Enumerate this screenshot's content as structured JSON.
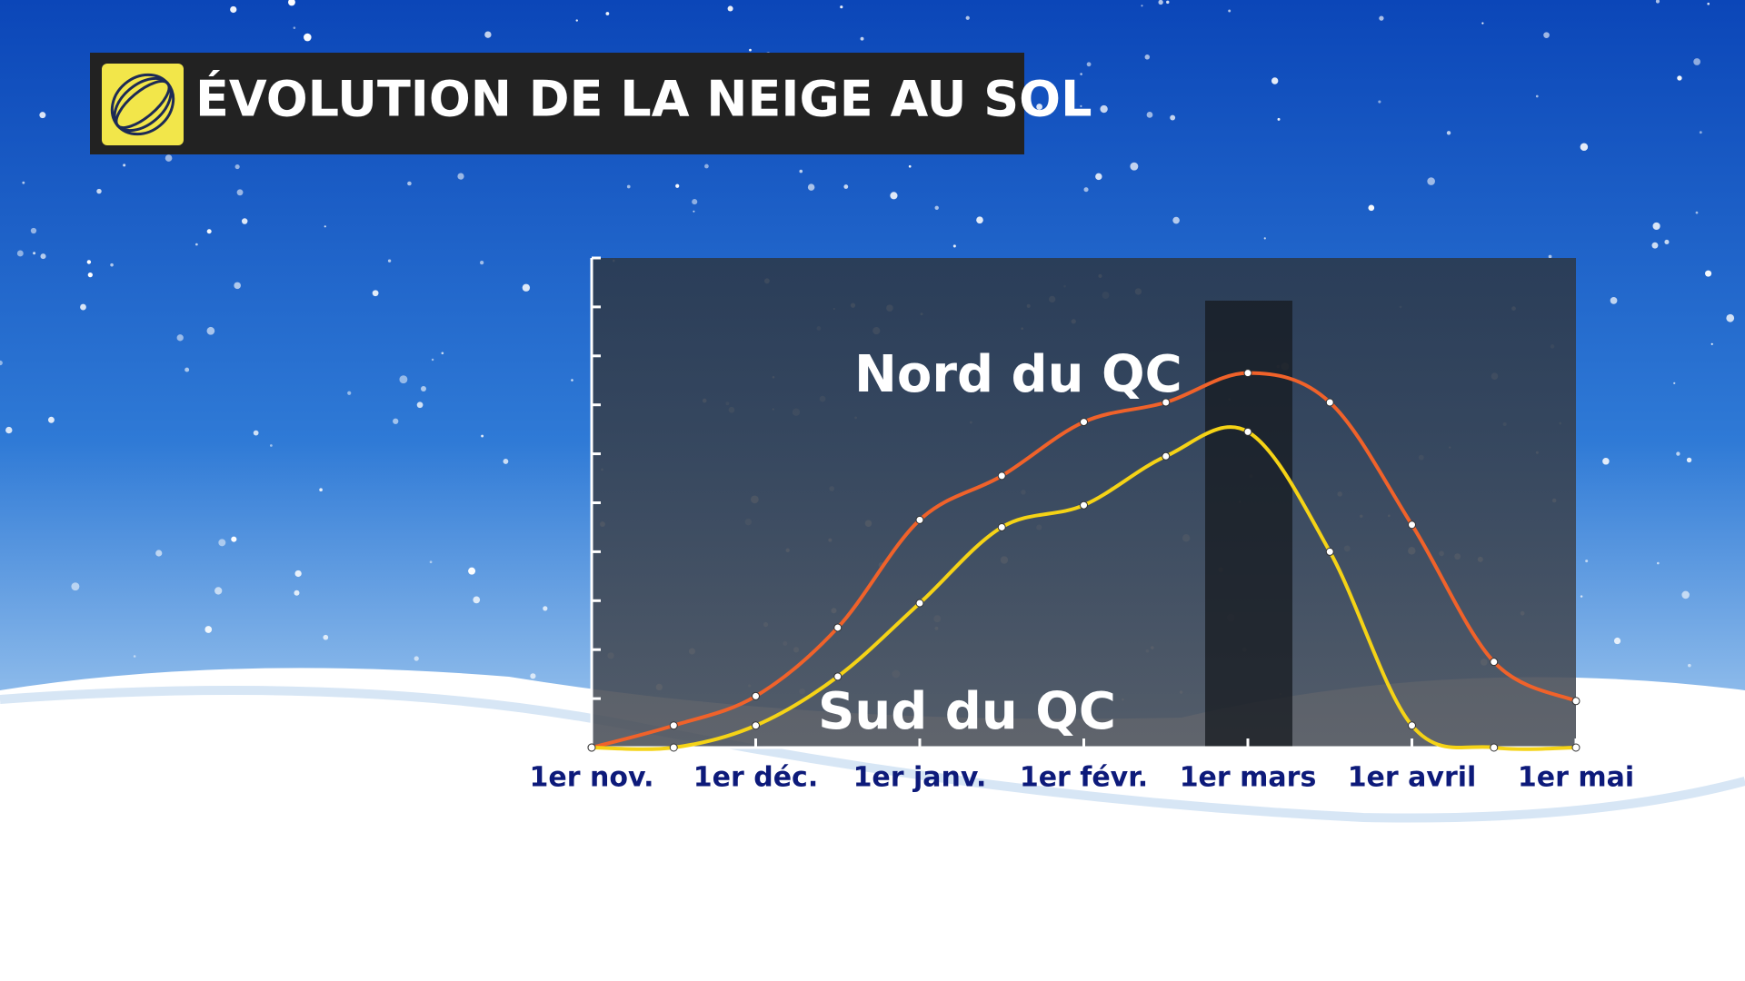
{
  "chart_data": {
    "type": "line",
    "title": "ÉVOLUTION DE LA NEIGE AU SOL",
    "categories": [
      "1er nov.",
      null,
      "1er déc.",
      null,
      "1er janv.",
      null,
      "1er févr.",
      null,
      "1er mars",
      null,
      "1er avril",
      null,
      "1er mai"
    ],
    "series": [
      {
        "name": "Nord du QC",
        "color": "#f0622a",
        "values": [
          0,
          0.45,
          1.05,
          2.45,
          4.65,
          5.55,
          6.65,
          7.05,
          7.65,
          7.05,
          4.55,
          1.75,
          0.95
        ]
      },
      {
        "name": "Sud du QC",
        "color": "#f5d316",
        "values": [
          0,
          0,
          0.45,
          1.45,
          2.95,
          4.5,
          4.95,
          5.95,
          6.45,
          4.0,
          0.45,
          0,
          0
        ]
      }
    ],
    "ylim": [
      0,
      10
    ],
    "yticks": [
      0,
      1,
      2,
      3,
      4,
      5,
      6,
      7,
      8,
      9,
      10
    ]
  }
}
